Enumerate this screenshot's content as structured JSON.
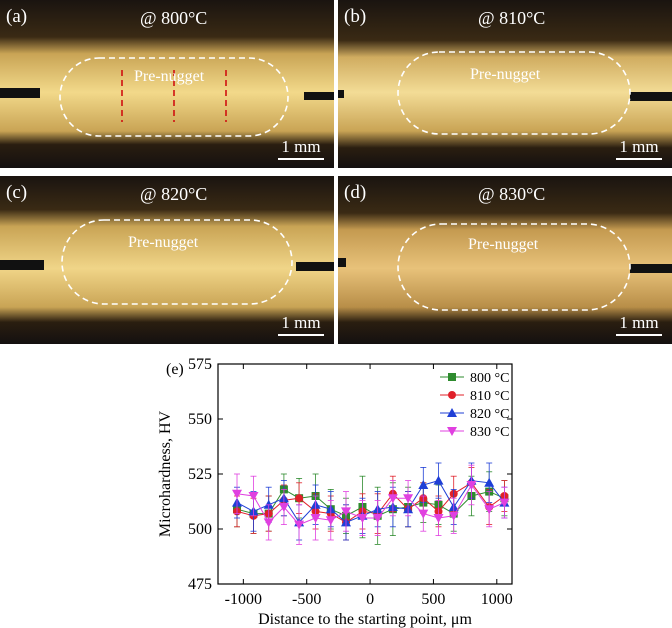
{
  "panels": [
    {
      "label": "(a)",
      "temp": "@ 800°C",
      "nugget": "Pre-nugget",
      "scale": "1 mm"
    },
    {
      "label": "(b)",
      "temp": "@ 810°C",
      "nugget": "Pre-nugget",
      "scale": "1 mm"
    },
    {
      "label": "(c)",
      "temp": "@ 820°C",
      "nugget": "Pre-nugget",
      "scale": "1 mm"
    },
    {
      "label": "(d)",
      "temp": "@ 830°C",
      "nugget": "Pre-nugget",
      "scale": "1 mm"
    }
  ],
  "chart_panel_label": "(e)",
  "chart_data": {
    "type": "scatter",
    "xlabel": "Distance to the starting point, μm",
    "ylabel": "Microhardness, HV",
    "xlim": [
      -1200,
      1120
    ],
    "ylim": [
      475,
      575
    ],
    "xticks": [
      -1000,
      -500,
      0,
      500,
      1000
    ],
    "xtick_labels": [
      "-1000",
      "-500",
      "0",
      "500",
      "1000"
    ],
    "yticks": [
      475,
      500,
      525,
      550,
      575
    ],
    "legend_position": "top-right",
    "series": [
      {
        "name": "800 °C",
        "color": "#2e8b2e",
        "marker": "square",
        "x": [
          -1050,
          -920,
          -800,
          -680,
          -560,
          -430,
          -310,
          -190,
          -60,
          60,
          180,
          300,
          420,
          540,
          660,
          800,
          940,
          1060
        ],
        "y": [
          509,
          507,
          507,
          518,
          514,
          515,
          509,
          506,
          510,
          506,
          509,
          510,
          512,
          511,
          507,
          515,
          517,
          514
        ],
        "err": [
          8,
          9,
          8,
          7,
          9,
          10,
          9,
          8,
          14,
          13,
          12,
          9,
          9,
          9,
          8,
          9,
          9,
          8
        ]
      },
      {
        "name": "810 °C",
        "color": "#e0202a",
        "marker": "circle",
        "x": [
          -1050,
          -920,
          -800,
          -680,
          -560,
          -430,
          -310,
          -190,
          -60,
          60,
          180,
          300,
          420,
          540,
          660,
          800,
          940,
          1060
        ],
        "y": [
          508,
          506,
          507,
          513,
          514,
          508,
          507,
          503,
          508,
          507,
          516,
          509,
          514,
          508,
          516,
          521,
          510,
          515
        ],
        "err": [
          7,
          8,
          8,
          7,
          7,
          8,
          8,
          8,
          8,
          9,
          8,
          8,
          7,
          7,
          8,
          7,
          8,
          7
        ]
      },
      {
        "name": "820 °C",
        "color": "#1f3fd6",
        "marker": "triangle-up",
        "x": [
          -1050,
          -920,
          -800,
          -680,
          -560,
          -430,
          -310,
          -190,
          -60,
          60,
          180,
          300,
          420,
          540,
          660,
          800,
          940,
          1060
        ],
        "y": [
          512,
          508,
          511,
          514,
          503,
          511,
          509,
          503,
          506,
          509,
          510,
          509,
          520,
          522,
          510,
          522,
          521,
          512
        ],
        "err": [
          7,
          9,
          8,
          8,
          8,
          9,
          8,
          8,
          8,
          8,
          9,
          8,
          8,
          8,
          8,
          8,
          9,
          7
        ]
      },
      {
        "name": "830 °C",
        "color": "#e040e0",
        "marker": "triangle-down",
        "x": [
          -1050,
          -920,
          -800,
          -680,
          -560,
          -430,
          -310,
          -190,
          -60,
          60,
          180,
          300,
          420,
          540,
          660,
          800,
          940,
          1060
        ],
        "y": [
          516,
          515,
          503,
          510,
          502,
          505,
          504,
          508,
          505,
          505,
          514,
          514,
          507,
          505,
          506,
          520,
          509,
          512
        ],
        "err": [
          9,
          9,
          8,
          8,
          9,
          10,
          9,
          9,
          8,
          8,
          8,
          8,
          8,
          8,
          8,
          9,
          8,
          7
        ]
      }
    ]
  }
}
